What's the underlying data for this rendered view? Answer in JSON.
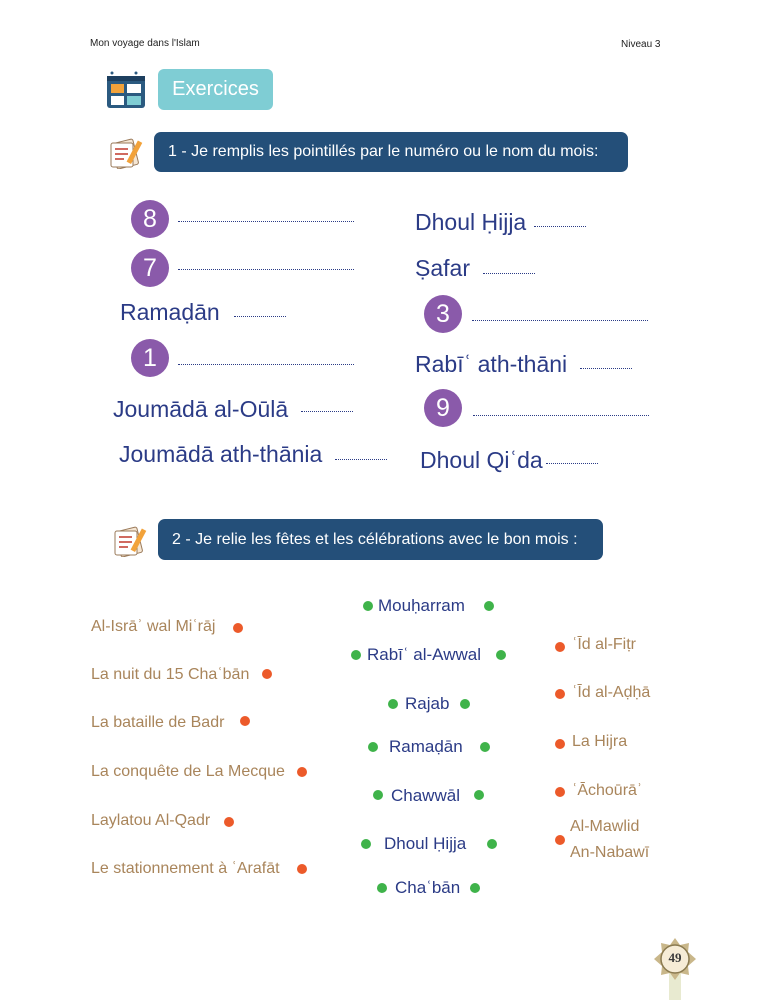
{
  "header": {
    "book_title": "Mon voyage dans l'Islam",
    "level": "Niveau 3"
  },
  "section_title": "Exercices",
  "exercise1": {
    "instruction": "1 - Je remplis les pointillés par le numéro ou le nom du mois:",
    "left": [
      {
        "kind": "number",
        "text": "8"
      },
      {
        "kind": "number",
        "text": "7"
      },
      {
        "kind": "name",
        "text": "Ramaḍān"
      },
      {
        "kind": "number",
        "text": "1"
      },
      {
        "kind": "name",
        "text": "Joumādā al-Oūlā"
      },
      {
        "kind": "name",
        "text": "Joumādā ath-thānia"
      }
    ],
    "right": [
      {
        "kind": "name",
        "text": "Dhoul Ḥijja"
      },
      {
        "kind": "name",
        "text": "Ṣafar"
      },
      {
        "kind": "number",
        "text": "3"
      },
      {
        "kind": "name",
        "text": "Rabīʿ ath-thāni"
      },
      {
        "kind": "number",
        "text": "9"
      },
      {
        "kind": "name",
        "text": "Dhoul Qiʿda"
      }
    ]
  },
  "exercise2": {
    "instruction": "2 - Je relie les fêtes et les célébrations avec le bon mois :",
    "events_left": [
      "Al-Isrāʾ wal Miʿrāj",
      "La nuit du 15 Chaʿbān",
      "La bataille de Badr",
      "La conquête de La Mecque",
      "Laylatou Al-Qadr",
      "Le stationnement à ʿArafāt"
    ],
    "months": [
      "Mouḥarram",
      "Rabīʿ al-Awwal",
      "Rajab",
      "Ramaḍān",
      "Chawwāl",
      "Dhoul Ḥijja",
      "Chaʿbān"
    ],
    "events_right": [
      "ʿĪd al-Fiṭr",
      "ʿĪd al-Aḍḥā",
      "La Hijra",
      "ʿĀchoūrāʾ",
      "Al-Mawlid",
      "An-Nabawī"
    ]
  },
  "page_number": "49",
  "colors": {
    "banner": "#244f79",
    "badge": "#7fcdd4",
    "circle": "#8a5aaa",
    "month_text": "#2b3b86",
    "event_text": "#a9855b",
    "green_dot": "#3fb34a",
    "orange_dot": "#ec5a2a"
  }
}
